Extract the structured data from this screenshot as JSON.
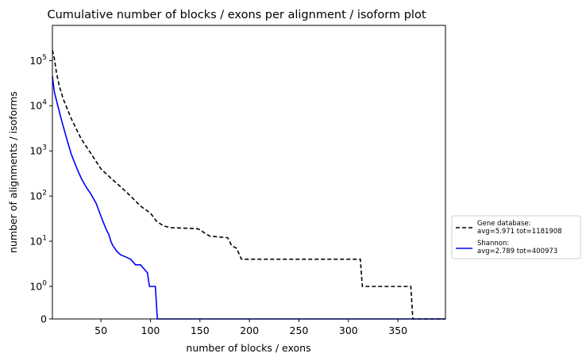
{
  "chart_data": {
    "type": "line",
    "title": "Cumulative number of blocks / exons per alignment / isoform plot",
    "xlabel": "number of blocks / exons",
    "ylabel": "number of alignments / isoforms",
    "xlim": [
      1,
      398
    ],
    "xticks": [
      50,
      100,
      150,
      200,
      250,
      300,
      350
    ],
    "ylim": [
      0,
      600000
    ],
    "yscale": "symlog",
    "yticks": [
      {
        "value": 0,
        "base": "0",
        "exp": ""
      },
      {
        "value": 1,
        "base": "10",
        "exp": "0"
      },
      {
        "value": 10,
        "base": "10",
        "exp": "1"
      },
      {
        "value": 100,
        "base": "10",
        "exp": "2"
      },
      {
        "value": 1000,
        "base": "10",
        "exp": "3"
      },
      {
        "value": 10000,
        "base": "10",
        "exp": "4"
      },
      {
        "value": 100000,
        "base": "10",
        "exp": "5"
      }
    ],
    "legend_position": "outside-right",
    "series": [
      {
        "name": "Gene database:",
        "stats": "avg=5.971 tot=1181908",
        "color": "#000000",
        "style": "dashed",
        "x": [
          1,
          3,
          5,
          8,
          12,
          20,
          30,
          40,
          50,
          60,
          70,
          80,
          90,
          100,
          106,
          113,
          120,
          147,
          150,
          155,
          160,
          178,
          182,
          187,
          192,
          312,
          314,
          363,
          365,
          398
        ],
        "y": [
          170000,
          110000,
          55000,
          27000,
          14000,
          5200,
          1850,
          870,
          400,
          250,
          160,
          100,
          60,
          42,
          28,
          22,
          20,
          19,
          18,
          15,
          13,
          12,
          8,
          7,
          4,
          4,
          1,
          1,
          0,
          0
        ]
      },
      {
        "name": "Shannon:",
        "stats": "avg=2.789 tot=400973",
        "color": "#0000ff",
        "style": "solid",
        "x": [
          1,
          3,
          6,
          10,
          15,
          20,
          25,
          30,
          35,
          40,
          45,
          50,
          55,
          58,
          60,
          62,
          64,
          66,
          70,
          75,
          80,
          85,
          90,
          97,
          99,
          105,
          106,
          107,
          398
        ],
        "y": [
          45000,
          20000,
          11000,
          5000,
          2000,
          850,
          450,
          250,
          160,
          110,
          70,
          36,
          19,
          14,
          10,
          8,
          7,
          6,
          5,
          4.5,
          4,
          3,
          3,
          2,
          1,
          1,
          0.5,
          0,
          0
        ]
      }
    ]
  }
}
